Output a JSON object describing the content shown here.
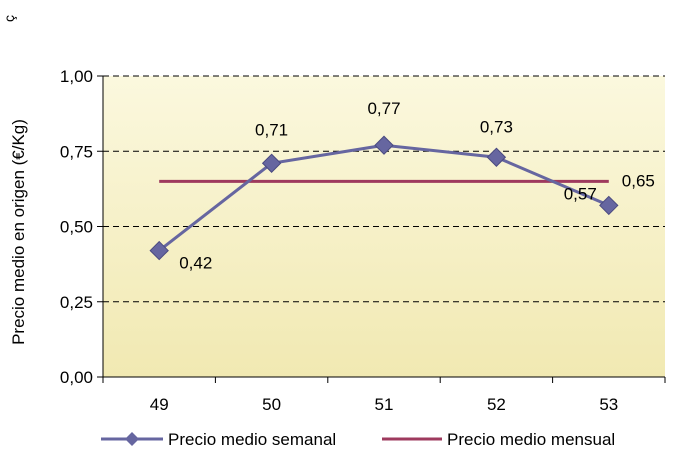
{
  "corner_mark": "ç",
  "chart_data": {
    "type": "line",
    "categories": [
      "49",
      "50",
      "51",
      "52",
      "53"
    ],
    "ylabel": "Precio medio en origen (€/Kg)",
    "ylim": [
      0,
      1
    ],
    "yticks": [
      "0,00",
      "0,25",
      "0,50",
      "0,75",
      "1,00"
    ],
    "grid": true,
    "legend_position": "bottom",
    "series": [
      {
        "name": "Precio medio semanal",
        "values": [
          0.42,
          0.71,
          0.77,
          0.73,
          0.57
        ],
        "labels": [
          "0,42",
          "0,71",
          "0,77",
          "0,73",
          "0,57"
        ],
        "color": "#6666A0"
      },
      {
        "name": "Precio medio mensual",
        "values": [
          0.65,
          0.65,
          0.65,
          0.65,
          0.65
        ],
        "end_label": "0,65",
        "color": "#9E3A5E"
      }
    ],
    "plot_background": "#F5EFBF"
  }
}
